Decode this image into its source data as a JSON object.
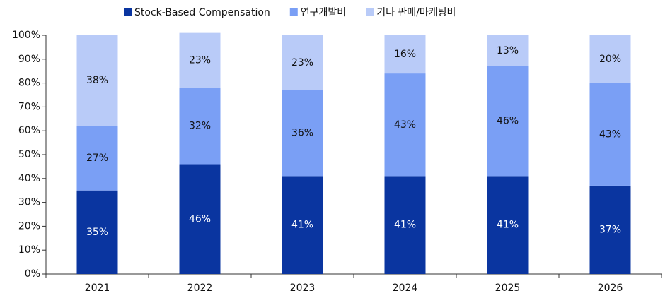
{
  "chart_data": {
    "type": "stacked_bar",
    "categories": [
      "2021",
      "2022",
      "2023",
      "2024",
      "2025",
      "2026"
    ],
    "series": [
      {
        "name": "Stock-Based Compensation",
        "color": "#0a35a0",
        "values": [
          35,
          46,
          41,
          41,
          41,
          37
        ],
        "value_labels": [
          "35%",
          "46%",
          "41%",
          "41%",
          "41%",
          "37%"
        ]
      },
      {
        "name": "연구개발비",
        "color": "#7a9ff5",
        "values": [
          27,
          32,
          36,
          43,
          46,
          43
        ],
        "value_labels": [
          "27%",
          "32%",
          "36%",
          "43%",
          "46%",
          "43%"
        ]
      },
      {
        "name": "기타 판매/마케팅비",
        "color": "#b9cbf8",
        "values": [
          38,
          23,
          23,
          16,
          13,
          20
        ],
        "value_labels": [
          "38%",
          "23%",
          "23%",
          "16%",
          "13%",
          "20%"
        ]
      }
    ],
    "ylim": [
      0,
      100
    ],
    "yticks": [
      {
        "value": 0,
        "label": "0%"
      },
      {
        "value": 10,
        "label": "10%"
      },
      {
        "value": 20,
        "label": "20%"
      },
      {
        "value": 30,
        "label": "30%"
      },
      {
        "value": 40,
        "label": "40%"
      },
      {
        "value": 50,
        "label": "50%"
      },
      {
        "value": 60,
        "label": "60%"
      },
      {
        "value": 70,
        "label": "70%"
      },
      {
        "value": 80,
        "label": "80%"
      },
      {
        "value": 90,
        "label": "90%"
      },
      {
        "value": 100,
        "label": "100%"
      }
    ],
    "legend": "top"
  }
}
